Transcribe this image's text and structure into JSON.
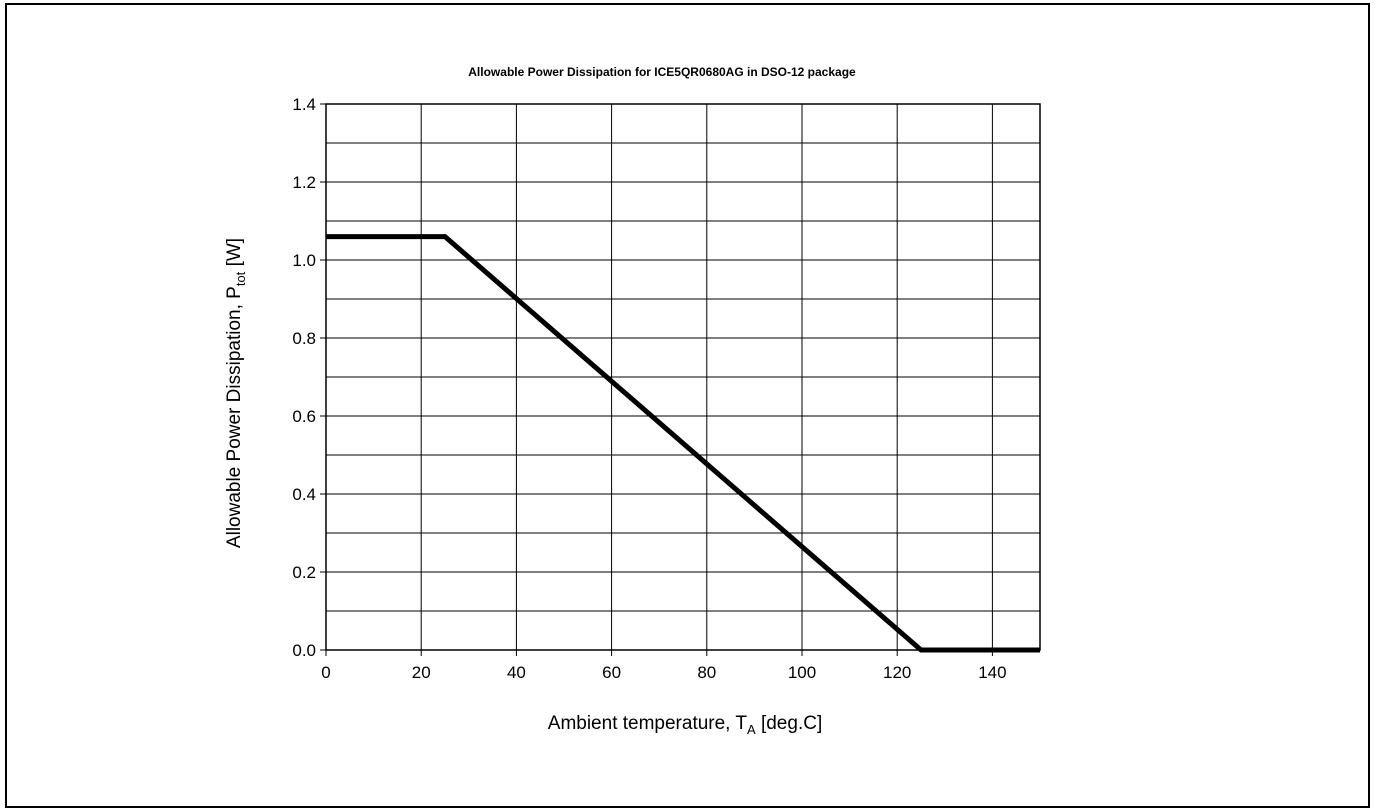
{
  "chart_data": {
    "type": "line",
    "title": "Allowable  Power Dissipation  for ICE5QR0680AG  in  DSO-12 package",
    "xlabel": {
      "main": "Ambient  temperature,  T",
      "sub": "A",
      "tail": " [deg.C]"
    },
    "ylabel": {
      "main": "Allowable  Power  Dissipation,  P",
      "sub": "tot",
      "tail": " [W]"
    },
    "xlim": [
      0,
      150
    ],
    "ylim": [
      0,
      1.4
    ],
    "xticks": [
      0,
      20,
      40,
      60,
      80,
      100,
      120,
      140
    ],
    "yticks": [
      "0.0",
      "0.2",
      "0.4",
      "0.6",
      "0.8",
      "1.0",
      "1.2",
      "1.4"
    ],
    "xgrid_step": 20,
    "ygrid_step": 0.1,
    "grid": true,
    "series": [
      {
        "x": [
          0,
          25,
          125,
          150
        ],
        "y": [
          1.06,
          1.06,
          0,
          0
        ]
      }
    ]
  }
}
